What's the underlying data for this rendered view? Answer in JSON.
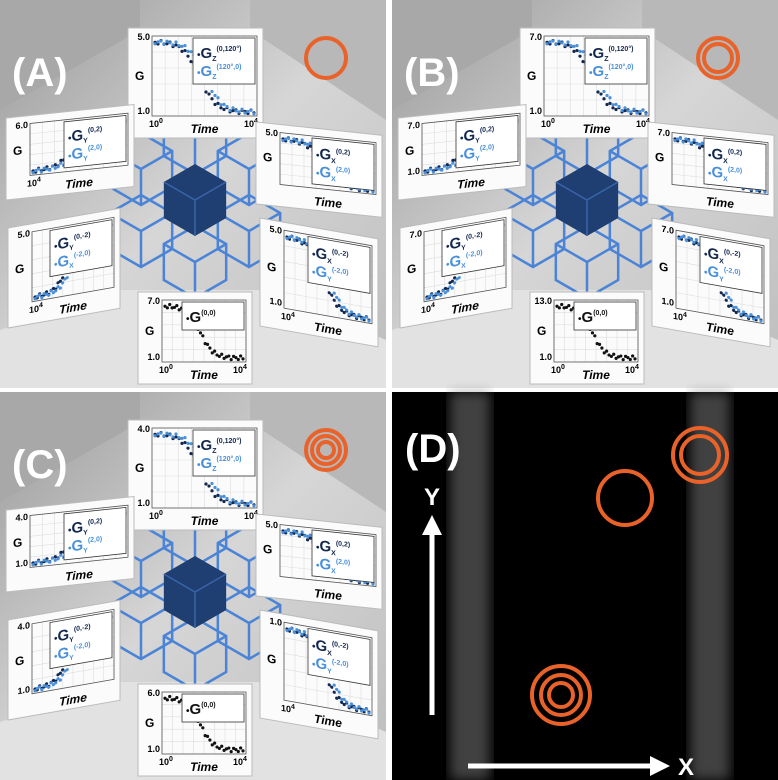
{
  "panels": [
    {
      "label": "(A)",
      "plots": [
        {
          "legend": [
            {
              "symbol": "G",
              "sub": "Z",
              "sup": "(0,120°)"
            },
            {
              "symbol": "G",
              "sub": "Z",
              "sup": "(120°,0)"
            }
          ],
          "y_ticks": [
            "5.0",
            "1.0"
          ],
          "y_label": "G",
          "x_label": "Time",
          "x_ticks": [
            {
              "base": "10",
              "exp": "0"
            },
            {
              "base": "10",
              "exp": "4"
            }
          ]
        },
        {
          "legend": [
            {
              "symbol": "G",
              "sub": "Y",
              "sup": "(0,2)"
            },
            {
              "symbol": "G",
              "sub": "Y",
              "sup": "(2,0)"
            }
          ],
          "y_ticks": [
            "6.0"
          ],
          "y_label": "G",
          "x_label": "Time",
          "x_ticks": [
            {
              "base": "10",
              "exp": "4"
            }
          ]
        },
        {
          "legend": [
            {
              "symbol": "G",
              "sub": "X",
              "sup": "(0,2)"
            },
            {
              "symbol": "G",
              "sub": "X",
              "sup": "(2,0)"
            }
          ],
          "y_ticks": [
            "5.0"
          ],
          "y_label": "G",
          "x_label": "Time",
          "x_ticks": []
        },
        {
          "legend": [
            {
              "symbol": "G",
              "sub": "Y",
              "sup": "(0,-2)"
            },
            {
              "symbol": "G",
              "sub": "X",
              "sup": "(-2,0)"
            }
          ],
          "y_ticks": [
            "5.0"
          ],
          "y_label": "G",
          "x_label": "Time",
          "x_ticks": [
            {
              "base": "10",
              "exp": "4"
            }
          ]
        },
        {
          "legend": [
            {
              "symbol": "G",
              "sub": "X",
              "sup": "(0,-2)"
            },
            {
              "symbol": "G",
              "sub": "Y",
              "sup": "(-2,0)"
            }
          ],
          "y_ticks": [
            "5.0",
            "1.0"
          ],
          "y_label": "G",
          "x_label": "Time",
          "x_ticks": [
            {
              "base": "10",
              "exp": "4"
            }
          ]
        },
        {
          "legend": [
            {
              "symbol": "G",
              "sub": "",
              "sup": "(0,0)"
            }
          ],
          "y_ticks": [
            "7.0",
            "1.0"
          ],
          "y_label": "G",
          "x_label": "Time",
          "x_ticks": [
            {
              "base": "10",
              "exp": "0"
            },
            {
              "base": "10",
              "exp": "4"
            }
          ]
        }
      ]
    },
    {
      "label": "(B)",
      "plots": [
        {
          "legend": [
            {
              "symbol": "G",
              "sub": "Z",
              "sup": "(0,120°)"
            },
            {
              "symbol": "G",
              "sub": "Z",
              "sup": "(120°,0)"
            }
          ],
          "y_ticks": [
            "7.0",
            "1.0"
          ],
          "y_label": "G",
          "x_label": "Time",
          "x_ticks": [
            {
              "base": "10",
              "exp": "0"
            },
            {
              "base": "10",
              "exp": "4"
            }
          ]
        },
        {
          "legend": [
            {
              "symbol": "G",
              "sub": "Y",
              "sup": "(0,2)"
            },
            {
              "symbol": "G",
              "sub": "Y",
              "sup": "(2,0)"
            }
          ],
          "y_ticks": [
            "7.0",
            "1.0"
          ],
          "y_label": "G",
          "x_label": "Time",
          "x_ticks": []
        },
        {
          "legend": [
            {
              "symbol": "G",
              "sub": "X",
              "sup": "(0,2)"
            },
            {
              "symbol": "G",
              "sub": "X",
              "sup": "(2,0)"
            }
          ],
          "y_ticks": [
            "7.0"
          ],
          "y_label": "G",
          "x_label": "Time",
          "x_ticks": []
        },
        {
          "legend": [
            {
              "symbol": "G",
              "sub": "Y",
              "sup": "(0,-2)"
            },
            {
              "symbol": "G",
              "sub": "X",
              "sup": "(-2,0)"
            }
          ],
          "y_ticks": [
            "7.0"
          ],
          "y_label": "G",
          "x_label": "Time",
          "x_ticks": [
            {
              "base": "10",
              "exp": "4"
            }
          ]
        },
        {
          "legend": [
            {
              "symbol": "G",
              "sub": "X",
              "sup": "(0,-2)"
            },
            {
              "symbol": "G",
              "sub": "Y",
              "sup": "(-2,0)"
            }
          ],
          "y_ticks": [
            "7.0",
            "1.0"
          ],
          "y_label": "G",
          "x_label": "Time",
          "x_ticks": [
            {
              "base": "10",
              "exp": "4"
            }
          ]
        },
        {
          "legend": [
            {
              "symbol": "G",
              "sub": "",
              "sup": "(0,0)"
            }
          ],
          "y_ticks": [
            "13.0",
            "1.0"
          ],
          "y_label": "G",
          "x_label": "Time",
          "x_ticks": [
            {
              "base": "10",
              "exp": "0"
            },
            {
              "base": "10",
              "exp": "4"
            }
          ]
        }
      ]
    },
    {
      "label": "(C)",
      "plots": [
        {
          "legend": [
            {
              "symbol": "G",
              "sub": "Z",
              "sup": "(0,120°)"
            },
            {
              "symbol": "G",
              "sub": "Z",
              "sup": "(120°,0)"
            }
          ],
          "y_ticks": [
            "4.0",
            "1.0"
          ],
          "y_label": "G",
          "x_label": "Time",
          "x_ticks": [
            {
              "base": "10",
              "exp": "0"
            },
            {
              "base": "10",
              "exp": "4"
            }
          ]
        },
        {
          "legend": [
            {
              "symbol": "G",
              "sub": "Y",
              "sup": "(0,2)"
            },
            {
              "symbol": "G",
              "sub": "Y",
              "sup": "(2,0)"
            }
          ],
          "y_ticks": [
            "4.0",
            "1.0"
          ],
          "y_label": "G",
          "x_label": "Time",
          "x_ticks": []
        },
        {
          "legend": [
            {
              "symbol": "G",
              "sub": "X",
              "sup": "(0,2)"
            },
            {
              "symbol": "G",
              "sub": "X",
              "sup": "(2,0)"
            }
          ],
          "y_ticks": [
            "5.0"
          ],
          "y_label": "G",
          "x_label": "Time",
          "x_ticks": []
        },
        {
          "legend": [
            {
              "symbol": "G",
              "sub": "Y",
              "sup": "(0,-2)"
            },
            {
              "symbol": "G",
              "sub": "Y",
              "sup": "(-2,0)"
            }
          ],
          "y_ticks": [
            "4.0",
            "1.0"
          ],
          "y_label": "G",
          "x_label": "Time",
          "x_ticks": []
        },
        {
          "legend": [
            {
              "symbol": "G",
              "sub": "X",
              "sup": "(0,-2)"
            },
            {
              "symbol": "G",
              "sub": "Y",
              "sup": "(-2,0)"
            }
          ],
          "y_ticks": [
            "1.0"
          ],
          "y_label": "G",
          "x_label": "Time",
          "x_ticks": [
            {
              "base": "10",
              "exp": "4"
            }
          ]
        },
        {
          "legend": [
            {
              "symbol": "G",
              "sub": "",
              "sup": "(0,0)"
            }
          ],
          "y_ticks": [
            "6.0",
            "1.0"
          ],
          "y_label": "G",
          "x_label": "Time",
          "x_ticks": [
            {
              "base": "10",
              "exp": "0"
            },
            {
              "base": "10",
              "exp": "4"
            }
          ]
        }
      ]
    }
  ],
  "image_panel": {
    "label": "(D)",
    "y_axis": "Y",
    "x_axis": "X"
  }
}
